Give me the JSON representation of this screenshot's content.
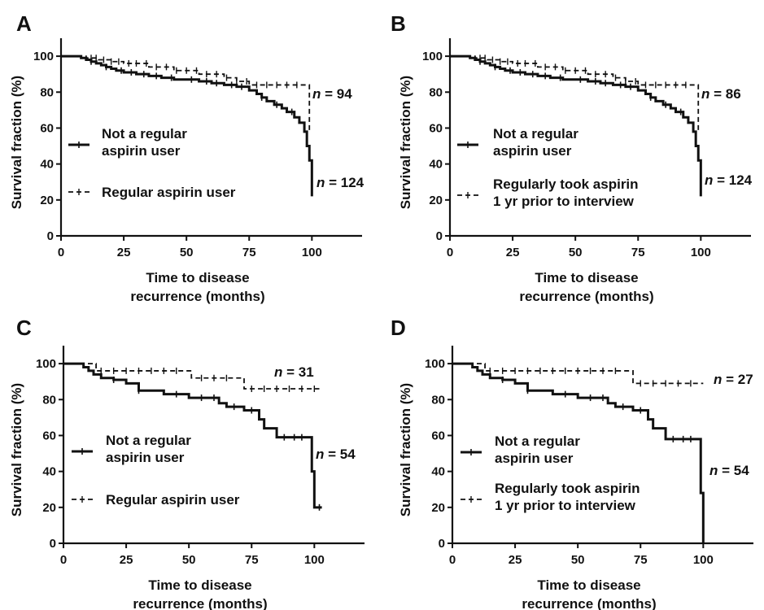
{
  "chart_data": [
    {
      "panel": "A",
      "type": "line",
      "xlabel": [
        "Time to disease",
        "recurrence (months)"
      ],
      "ylabel": "Survival fraction (%)",
      "xlim": [
        0,
        120
      ],
      "ylim": [
        0,
        110
      ],
      "xticks": [
        0,
        25,
        50,
        75,
        100
      ],
      "yticks": [
        0,
        20,
        40,
        60,
        80,
        100
      ],
      "series": [
        {
          "name": "Not a regular aspirin user",
          "style": "solid",
          "legend_lines": [
            "Not a regular",
            "aspirin user"
          ],
          "n_label": "124",
          "x": [
            0,
            8,
            10,
            12,
            14,
            16,
            18,
            20,
            22,
            25,
            30,
            35,
            40,
            45,
            50,
            55,
            60,
            65,
            70,
            75,
            78,
            80,
            82,
            85,
            88,
            90,
            93,
            95,
            97,
            98,
            99,
            100
          ],
          "y": [
            100,
            99,
            98,
            97,
            96,
            95,
            94,
            93,
            92,
            91,
            90,
            89,
            88,
            87,
            87,
            86,
            85,
            84,
            83,
            81,
            79,
            77,
            75,
            73,
            71,
            69,
            66,
            63,
            58,
            50,
            42,
            22
          ],
          "censor_x": [
            12,
            18,
            24,
            28,
            33,
            38,
            44,
            52,
            58,
            62,
            68,
            72,
            80,
            86,
            92
          ]
        },
        {
          "name": "Regular aspirin user",
          "style": "dashed",
          "legend_lines": [
            "Regular aspirin user"
          ],
          "n_label": "94",
          "x": [
            0,
            10,
            15,
            20,
            25,
            35,
            45,
            55,
            65,
            70,
            75,
            97,
            99
          ],
          "y": [
            100,
            99,
            98,
            97,
            96,
            94,
            92,
            90,
            88,
            86,
            84,
            84,
            58
          ],
          "censor_x": [
            12,
            14,
            17,
            20,
            23,
            27,
            30,
            34,
            38,
            42,
            46,
            50,
            54,
            58,
            62,
            66,
            70,
            74,
            78,
            82,
            86,
            90,
            94
          ]
        }
      ]
    },
    {
      "panel": "B",
      "type": "line",
      "xlabel": [
        "Time to disease",
        "recurrence (months)"
      ],
      "ylabel": "Survival fraction (%)",
      "xlim": [
        0,
        120
      ],
      "ylim": [
        0,
        110
      ],
      "xticks": [
        0,
        25,
        50,
        75,
        100
      ],
      "yticks": [
        0,
        20,
        40,
        60,
        80,
        100
      ],
      "series": [
        {
          "name": "Not a regular aspirin user",
          "style": "solid",
          "legend_lines": [
            "Not a regular",
            "aspirin user"
          ],
          "n_label": "124",
          "x": [
            0,
            8,
            10,
            12,
            14,
            16,
            18,
            20,
            22,
            25,
            30,
            35,
            40,
            45,
            50,
            55,
            60,
            65,
            70,
            75,
            78,
            80,
            82,
            85,
            88,
            90,
            93,
            95,
            97,
            98,
            99,
            100
          ],
          "y": [
            100,
            99,
            98,
            97,
            96,
            95,
            94,
            93,
            92,
            91,
            90,
            89,
            88,
            87,
            87,
            86,
            85,
            84,
            83,
            81,
            79,
            77,
            75,
            73,
            71,
            69,
            66,
            63,
            58,
            50,
            42,
            22
          ],
          "censor_x": [
            12,
            18,
            24,
            28,
            33,
            38,
            44,
            52,
            58,
            62,
            68,
            72,
            80,
            86,
            92
          ]
        },
        {
          "name": "Regularly took aspirin 1 yr prior to interview",
          "style": "dashed",
          "legend_lines": [
            "Regularly took aspirin",
            "1 yr prior to interview"
          ],
          "n_label": "86",
          "x": [
            0,
            10,
            15,
            20,
            25,
            35,
            45,
            55,
            65,
            70,
            75,
            97,
            99
          ],
          "y": [
            100,
            99,
            98,
            97,
            96,
            94,
            92,
            90,
            88,
            86,
            84,
            84,
            58
          ],
          "censor_x": [
            12,
            14,
            17,
            20,
            23,
            27,
            30,
            34,
            38,
            42,
            46,
            50,
            54,
            58,
            62,
            66,
            70,
            74,
            78,
            82,
            86,
            90,
            94
          ]
        }
      ]
    },
    {
      "panel": "C",
      "type": "line",
      "xlabel": [
        "Time to disease",
        "recurrence (months)"
      ],
      "ylabel": "Survival fraction (%)",
      "xlim": [
        0,
        120
      ],
      "ylim": [
        0,
        110
      ],
      "xticks": [
        0,
        25,
        50,
        75,
        100
      ],
      "yticks": [
        0,
        20,
        40,
        60,
        80,
        100
      ],
      "series": [
        {
          "name": "Not a regular aspirin user",
          "style": "solid",
          "legend_lines": [
            "Not a regular",
            "aspirin user"
          ],
          "n_label": "54",
          "x": [
            0,
            8,
            10,
            12,
            15,
            20,
            25,
            30,
            40,
            50,
            62,
            65,
            72,
            78,
            80,
            85,
            99,
            100
          ],
          "y": [
            100,
            98,
            96,
            94,
            92,
            91,
            89,
            85,
            83,
            81,
            78,
            76,
            74,
            69,
            64,
            59,
            40,
            20
          ],
          "censor_x": [
            20,
            30,
            45,
            55,
            60,
            68,
            75,
            88,
            92,
            95,
            102
          ],
          "tail_end_x": 103
        },
        {
          "name": "Regular aspirin user",
          "style": "dashed",
          "legend_lines": [
            "Regular aspirin user"
          ],
          "n_label": "31",
          "x": [
            0,
            10,
            13,
            51,
            72,
            102
          ],
          "y": [
            100,
            100,
            96,
            92,
            86,
            86
          ],
          "censor_x": [
            15,
            20,
            25,
            30,
            35,
            40,
            45,
            55,
            60,
            65,
            75,
            80,
            85,
            90,
            95,
            100
          ]
        }
      ]
    },
    {
      "panel": "D",
      "type": "line",
      "xlabel": [
        "Time to disease",
        "recurrence (months)"
      ],
      "ylabel": "Survival fraction (%)",
      "xlim": [
        0,
        120
      ],
      "ylim": [
        0,
        110
      ],
      "xticks": [
        0,
        25,
        50,
        75,
        100
      ],
      "yticks": [
        0,
        20,
        40,
        60,
        80,
        100
      ],
      "series": [
        {
          "name": "Not a regular aspirin user",
          "style": "solid",
          "legend_lines": [
            "Not a regular",
            "aspirin user"
          ],
          "n_label": "54",
          "x": [
            0,
            8,
            10,
            12,
            15,
            20,
            25,
            30,
            40,
            50,
            62,
            65,
            72,
            78,
            80,
            85,
            98,
            99,
            100
          ],
          "y": [
            100,
            98,
            96,
            94,
            92,
            91,
            89,
            85,
            83,
            81,
            78,
            76,
            74,
            69,
            64,
            58,
            58,
            28,
            0
          ],
          "censor_x": [
            20,
            30,
            45,
            55,
            60,
            68,
            75,
            88,
            92,
            95
          ]
        },
        {
          "name": "Regularly took aspirin 1 yr prior to interview",
          "style": "dashed",
          "legend_lines": [
            "Regularly took aspirin",
            "1 yr prior to interview"
          ],
          "n_label": "27",
          "x": [
            0,
            10,
            13,
            72,
            100
          ],
          "y": [
            100,
            100,
            96,
            89,
            89
          ],
          "censor_x": [
            15,
            20,
            25,
            30,
            35,
            40,
            45,
            50,
            55,
            60,
            65,
            75,
            80,
            85,
            90,
            95
          ]
        }
      ]
    }
  ]
}
